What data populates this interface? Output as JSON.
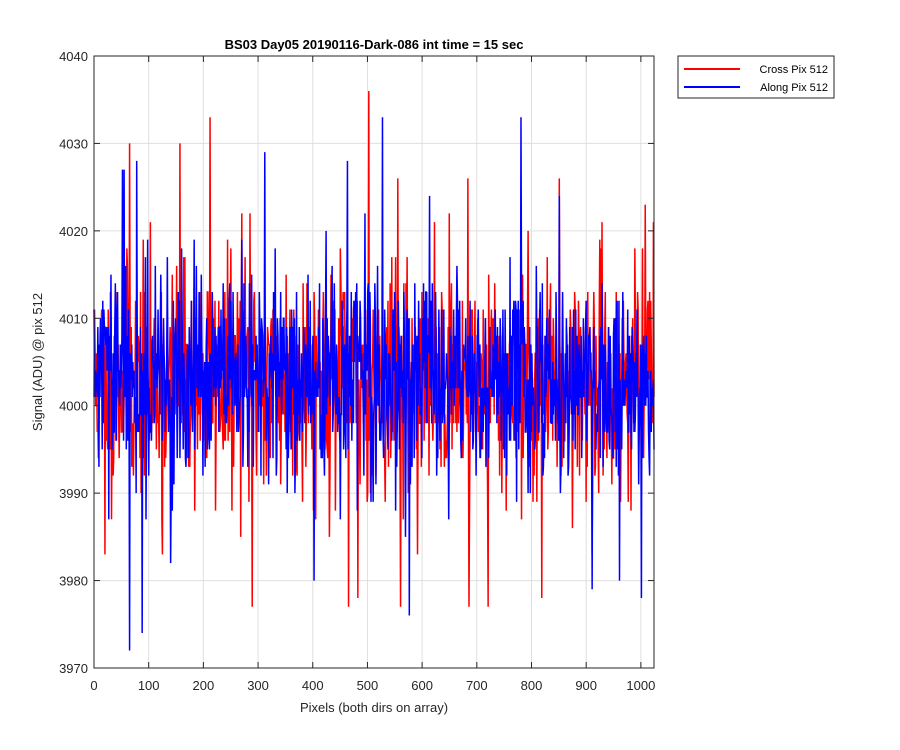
{
  "chart_data": {
    "type": "line",
    "title": "BS03 Day05 20190116-Dark-086 int time = 15 sec",
    "xlabel": "Pixels (both dirs on array)",
    "ylabel": "Signal (ADU) @ pix 512",
    "xlim": [
      0,
      1024
    ],
    "ylim": [
      3970,
      4040
    ],
    "xticks": [
      0,
      100,
      200,
      300,
      400,
      500,
      600,
      700,
      800,
      900,
      1000
    ],
    "yticks": [
      3970,
      3980,
      3990,
      4000,
      4010,
      4020,
      4030,
      4040
    ],
    "grid": true,
    "legend_position": "outside-top-right",
    "series": [
      {
        "name": "Cross Pix 512",
        "color": "#ff0000",
        "noise_model": {
          "n_points": 1024,
          "mean": 4003,
          "std": 6.5,
          "seed": 11,
          "spikes": [
            [
              65,
              4030
            ],
            [
              157,
              4030
            ],
            [
              212,
              4033
            ],
            [
              270,
              4022
            ],
            [
              285,
              4022
            ],
            [
              502,
              4036
            ],
            [
              555,
              4026
            ],
            [
              683,
              4026
            ],
            [
              850,
              4026
            ],
            [
              1022,
              4021
            ],
            [
              289,
              3977
            ],
            [
              465,
              3977
            ],
            [
              482,
              3978
            ],
            [
              560,
              3977
            ],
            [
              685,
              3977
            ],
            [
              720,
              3977
            ],
            [
              818,
              3978
            ],
            [
              20,
              3983
            ],
            [
              125,
              3983
            ],
            [
              910,
              3983
            ]
          ]
        }
      },
      {
        "name": "Along Pix 512",
        "color": "#0000ff",
        "noise_model": {
          "n_points": 1024,
          "mean": 4003,
          "std": 6.0,
          "seed": 29,
          "spikes": [
            [
              52,
              4027
            ],
            [
              55,
              4027
            ],
            [
              78,
              4028
            ],
            [
              312,
              4029
            ],
            [
              463,
              4028
            ],
            [
              527,
              4033
            ],
            [
              780,
              4033
            ],
            [
              850,
              4024
            ],
            [
              65,
              3972
            ],
            [
              88,
              3974
            ],
            [
              576,
              3976
            ],
            [
              402,
              3980
            ],
            [
              910,
              3979
            ],
            [
              1000,
              3978
            ],
            [
              960,
              3980
            ],
            [
              140,
              3982
            ]
          ]
        }
      }
    ]
  }
}
